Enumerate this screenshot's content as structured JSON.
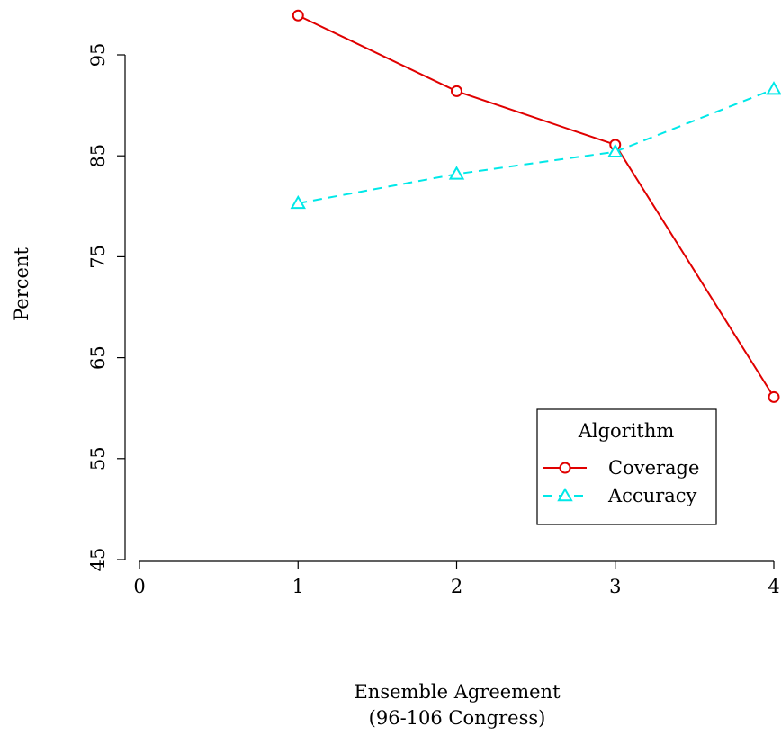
{
  "chart_data": {
    "type": "line",
    "title": "",
    "xlabel": "Ensemble Agreement",
    "xlabel_sub": "(96-106 Congress)",
    "ylabel": "Percent",
    "x_ticks": [
      0,
      1,
      2,
      3,
      4
    ],
    "y_ticks": [
      45,
      55,
      65,
      75,
      85,
      95
    ],
    "x_range": [
      0,
      4
    ],
    "y_range": [
      45,
      95
    ],
    "grid": false,
    "legend": {
      "title": "Algorithm",
      "placement": "bottom-right"
    },
    "series": [
      {
        "name": "Coverage",
        "color": "#e00000",
        "marker": "circle",
        "line_style": "solid",
        "x": [
          1,
          2,
          3,
          4
        ],
        "y": [
          98.9,
          91.4,
          86.1,
          61.1
        ]
      },
      {
        "name": "Accuracy",
        "color": "#00e8e8",
        "marker": "triangle",
        "line_style": "dashed",
        "x": [
          1,
          2,
          3,
          4
        ],
        "y": [
          80.3,
          83.2,
          85.4,
          91.6
        ]
      }
    ]
  }
}
